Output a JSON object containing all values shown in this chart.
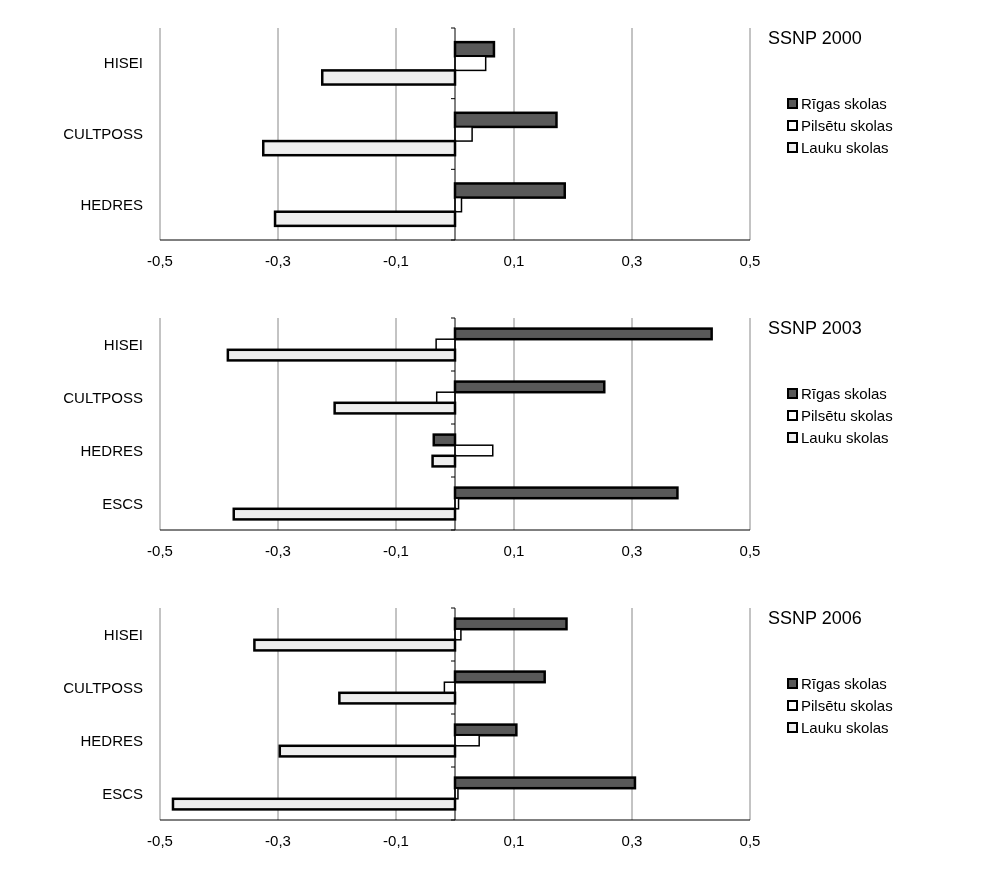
{
  "chart_data": [
    {
      "type": "bar",
      "orientation": "horizontal",
      "title": "SSNP 2000",
      "categories": [
        "HISEI",
        "CULTPOSS",
        "HEDRES"
      ],
      "series": [
        {
          "name": "Rīgas skolas",
          "color": "#595959",
          "values": [
            0.066,
            0.172,
            0.186
          ]
        },
        {
          "name": "Pilsētu skolas",
          "color": "#ffffff",
          "values": [
            0.052,
            0.029,
            0.011
          ]
        },
        {
          "name": "Lauku skolas",
          "color": "#eeeeee",
          "values": [
            -0.225,
            -0.325,
            -0.305
          ]
        }
      ],
      "xlim": [
        -0.5,
        0.5
      ],
      "xticks": [
        {
          "value": -0.5,
          "label": "-0,5"
        },
        {
          "value": -0.3,
          "label": "-0,3"
        },
        {
          "value": -0.1,
          "label": "-0,1"
        },
        {
          "value": 0.1,
          "label": "0,1"
        },
        {
          "value": 0.3,
          "label": "0,3"
        },
        {
          "value": 0.5,
          "label": "0,5"
        }
      ],
      "grid": "x",
      "legend": "right"
    },
    {
      "type": "bar",
      "orientation": "horizontal",
      "title": "SSNP 2003",
      "categories": [
        "HISEI",
        "CULTPOSS",
        "HEDRES",
        "ESCS"
      ],
      "series": [
        {
          "name": "Rīgas skolas",
          "color": "#595959",
          "values": [
            0.435,
            0.253,
            -0.036,
            0.377
          ]
        },
        {
          "name": "Pilsētu skolas",
          "color": "#ffffff",
          "values": [
            -0.032,
            -0.031,
            0.064,
            0.006
          ]
        },
        {
          "name": "Lauku skolas",
          "color": "#eeeeee",
          "values": [
            -0.385,
            -0.204,
            -0.038,
            -0.375
          ]
        }
      ],
      "xlim": [
        -0.5,
        0.5
      ],
      "xticks": [
        {
          "value": -0.5,
          "label": "-0,5"
        },
        {
          "value": -0.3,
          "label": "-0,3"
        },
        {
          "value": -0.1,
          "label": "-0,1"
        },
        {
          "value": 0.1,
          "label": "0,1"
        },
        {
          "value": 0.3,
          "label": "0,3"
        },
        {
          "value": 0.5,
          "label": "0,5"
        }
      ],
      "grid": "x",
      "legend": "right"
    },
    {
      "type": "bar",
      "orientation": "horizontal",
      "title": "SSNP 2006",
      "categories": [
        "HISEI",
        "CULTPOSS",
        "HEDRES",
        "ESCS"
      ],
      "series": [
        {
          "name": "Rīgas skolas",
          "color": "#595959",
          "values": [
            0.189,
            0.152,
            0.104,
            0.305
          ]
        },
        {
          "name": "Pilsētu skolas",
          "color": "#ffffff",
          "values": [
            0.01,
            -0.018,
            0.041,
            0.005
          ]
        },
        {
          "name": "Lauku skolas",
          "color": "#eeeeee",
          "values": [
            -0.34,
            -0.196,
            -0.297,
            -0.478
          ]
        }
      ],
      "xlim": [
        -0.5,
        0.5
      ],
      "xticks": [
        {
          "value": -0.5,
          "label": "-0,5"
        },
        {
          "value": -0.3,
          "label": "-0,3"
        },
        {
          "value": -0.1,
          "label": "-0,1"
        },
        {
          "value": 0.1,
          "label": "0,1"
        },
        {
          "value": 0.3,
          "label": "0,3"
        },
        {
          "value": 0.5,
          "label": "0,5"
        }
      ],
      "grid": "x",
      "legend": "right"
    }
  ]
}
